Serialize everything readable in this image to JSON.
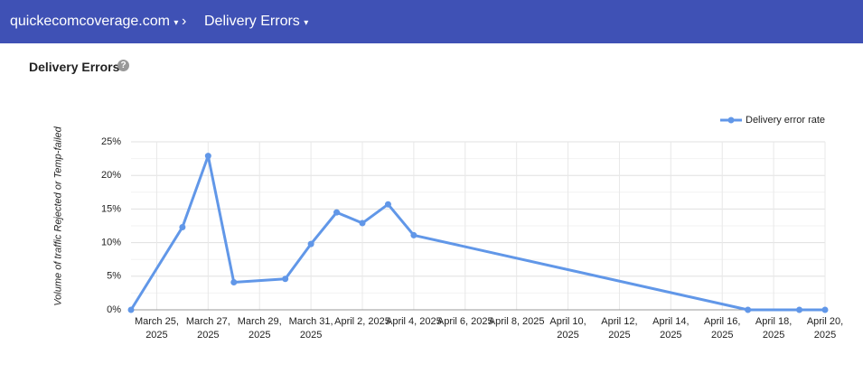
{
  "header": {
    "domain": "quickecomcoverage.com",
    "page": "Delivery Errors"
  },
  "chart_data": {
    "type": "line",
    "title": "Delivery Errors",
    "y_label": "Volume of traffic Rejected or Temp-failed",
    "x": [
      "2025-03-24",
      "2025-03-26",
      "2025-03-27",
      "2025-03-28",
      "2025-03-30",
      "2025-03-31",
      "2025-04-01",
      "2025-04-02",
      "2025-04-03",
      "2025-04-04",
      "2025-04-17",
      "2025-04-19",
      "2025-04-20"
    ],
    "series": [
      {
        "name": "Delivery error rate",
        "color": "#6197e8",
        "values": [
          0,
          12.3,
          22.9,
          4.1,
          4.6,
          9.8,
          14.5,
          12.9,
          15.7,
          11.1,
          0,
          0,
          0
        ]
      }
    ],
    "xlim": [
      "2025-03-24",
      "2025-04-20"
    ],
    "xticks": [
      {
        "value": "2025-03-25",
        "label": "March 25, 2025"
      },
      {
        "value": "2025-03-27",
        "label": "March 27, 2025"
      },
      {
        "value": "2025-03-29",
        "label": "March 29, 2025"
      },
      {
        "value": "2025-03-31",
        "label": "March 31, 2025"
      },
      {
        "value": "2025-04-02",
        "label": "April 2, 2025"
      },
      {
        "value": "2025-04-04",
        "label": "April 4, 2025"
      },
      {
        "value": "2025-04-06",
        "label": "April 6, 2025"
      },
      {
        "value": "2025-04-08",
        "label": "April 8, 2025"
      },
      {
        "value": "2025-04-10",
        "label": "April 10, 2025"
      },
      {
        "value": "2025-04-12",
        "label": "April 12, 2025"
      },
      {
        "value": "2025-04-14",
        "label": "April 14, 2025"
      },
      {
        "value": "2025-04-16",
        "label": "April 16, 2025"
      },
      {
        "value": "2025-04-18",
        "label": "April 18, 2025"
      },
      {
        "value": "2025-04-20",
        "label": "April 20, 2025"
      }
    ],
    "ylim": [
      0,
      25
    ],
    "yticks": [
      {
        "value": 0,
        "label": "0%"
      },
      {
        "value": 5,
        "label": "5%"
      },
      {
        "value": 10,
        "label": "10%"
      },
      {
        "value": 15,
        "label": "15%"
      },
      {
        "value": 20,
        "label": "20%"
      },
      {
        "value": 25,
        "label": "25%"
      }
    ],
    "grid": true,
    "legend": "top-right"
  }
}
